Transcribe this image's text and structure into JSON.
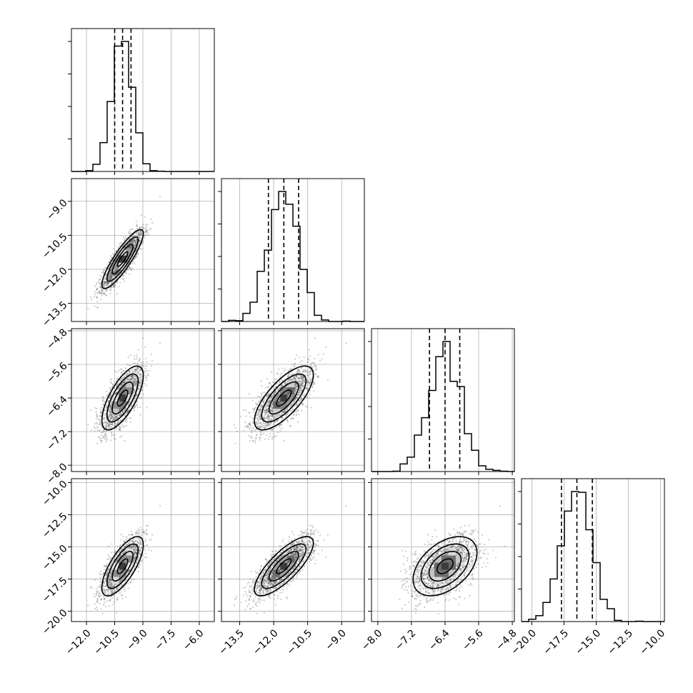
{
  "chart_data": {
    "type": "corner",
    "grid": true,
    "parameters": [
      {
        "range": [
          -12.8,
          -5.2
        ],
        "ticks": [
          "−12.0",
          "−10.5",
          "−9.0",
          "−7.5",
          "−6.0"
        ],
        "tick_values": [
          -12.0,
          -10.5,
          -9.0,
          -7.5,
          -6.0
        ],
        "mean": -10.08,
        "sd": 0.55,
        "quantiles": [
          -10.5,
          -10.08,
          -9.63
        ]
      },
      {
        "range": [
          -14.3,
          -8.0
        ],
        "ticks": [
          "−13.5",
          "−12.0",
          "−10.5",
          "−9.0"
        ],
        "tick_values": [
          -13.5,
          -12.0,
          -10.5,
          -9.0
        ],
        "mean": -11.55,
        "sd": 0.65,
        "quantiles": [
          -12.23,
          -11.55,
          -10.9
        ]
      },
      {
        "range": [
          -8.15,
          -4.75
        ],
        "ticks": [
          "−8.0",
          "−7.2",
          "−6.4",
          "−5.6",
          "−4.8"
        ],
        "tick_values": [
          -8.0,
          -7.2,
          -6.4,
          -5.6,
          -4.8
        ],
        "mean": -6.4,
        "sd": 0.38,
        "quantiles": [
          -6.77,
          -6.4,
          -6.05
        ]
      },
      {
        "range": [
          -20.8,
          -9.7
        ],
        "ticks": [
          "−20.0",
          "−17.5",
          "−15.0",
          "−12.5",
          "−10.0"
        ],
        "tick_values": [
          -20.0,
          -17.5,
          -15.0,
          -12.5,
          -10.0
        ],
        "mean": -16.5,
        "sd": 1.15,
        "quantiles": [
          -17.7,
          -16.5,
          -15.3
        ]
      }
    ],
    "correlations": [
      {
        "pair": [
          0,
          1
        ],
        "rho": 0.87
      },
      {
        "pair": [
          0,
          2
        ],
        "rho": 0.7
      },
      {
        "pair": [
          1,
          2
        ],
        "rho": 0.72
      },
      {
        "pair": [
          0,
          3
        ],
        "rho": 0.72
      },
      {
        "pair": [
          1,
          3
        ],
        "rho": 0.78
      },
      {
        "pair": [
          2,
          3
        ],
        "rho": 0.45
      }
    ],
    "histogram_bins": 20,
    "contour_levels_sigma": [
      0.5,
      1.0,
      1.5,
      2.0
    ],
    "colors": {
      "points": "#555555",
      "contour": "#000000",
      "grid": "#b0b0b0",
      "quantile_line": "#000000"
    }
  }
}
